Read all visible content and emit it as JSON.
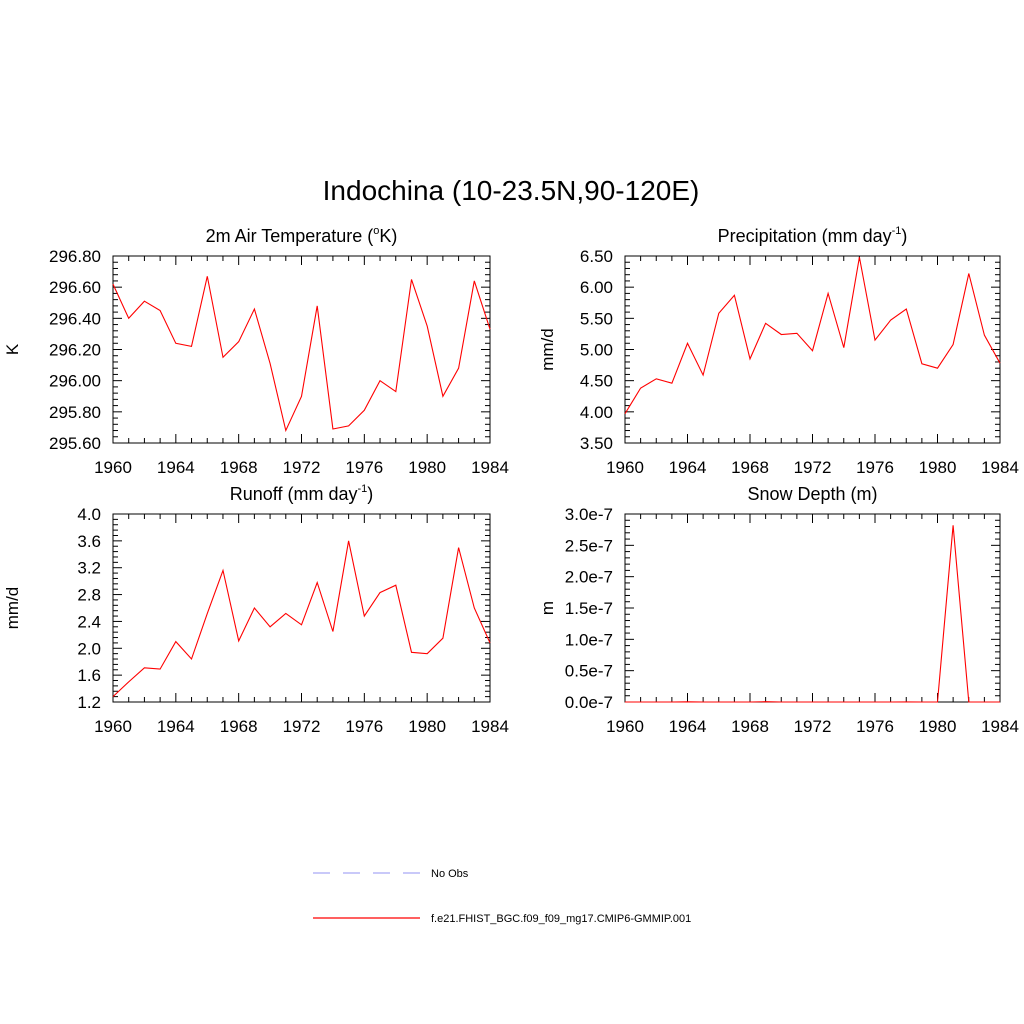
{
  "figure": {
    "title": "Indochina (10-23.5N,90-120E)"
  },
  "legend": {
    "entries": [
      {
        "label": "No Obs",
        "style": "dashed",
        "color": "#a9a9f5"
      },
      {
        "label": "f.e21.FHIST_BGC.f09_f09_mg17.CMIP6-GMMIP.001",
        "style": "solid",
        "color": "#ff0000"
      }
    ]
  },
  "chart_data": [
    {
      "type": "line",
      "title_main": "2m Air Temperature (",
      "title_sup": "o",
      "title_tail": "K)",
      "ylabel": "K",
      "xlim": [
        1960,
        1984
      ],
      "ylim": [
        295.6,
        296.8
      ],
      "xticks": [
        "1960",
        "1964",
        "1968",
        "1972",
        "1976",
        "1980",
        "1984"
      ],
      "yticks": [
        "295.60",
        "295.80",
        "296.00",
        "296.20",
        "296.40",
        "296.60",
        "296.80"
      ],
      "grid": false,
      "x": [
        1960,
        1961,
        1962,
        1963,
        1964,
        1965,
        1966,
        1967,
        1968,
        1969,
        1970,
        1971,
        1972,
        1973,
        1974,
        1975,
        1976,
        1977,
        1978,
        1979,
        1980,
        1981,
        1982,
        1983,
        1984
      ],
      "series": [
        {
          "color": "#ff0000",
          "values": [
            296.62,
            296.4,
            296.51,
            296.45,
            296.24,
            296.22,
            296.67,
            296.15,
            296.25,
            296.46,
            296.11,
            295.68,
            295.9,
            296.48,
            295.69,
            295.71,
            295.81,
            296.0,
            295.93,
            296.65,
            296.35,
            295.9,
            296.08,
            296.64,
            296.33
          ]
        }
      ]
    },
    {
      "type": "line",
      "title_main": "Precipitation (mm day",
      "title_sup": "-1",
      "title_tail": ")",
      "ylabel": "mm/d",
      "xlim": [
        1960,
        1984
      ],
      "ylim": [
        3.5,
        6.5
      ],
      "xticks": [
        "1960",
        "1964",
        "1968",
        "1972",
        "1976",
        "1980",
        "1984"
      ],
      "yticks": [
        "3.50",
        "4.00",
        "4.50",
        "5.00",
        "5.50",
        "6.00",
        "6.50"
      ],
      "grid": false,
      "x": [
        1960,
        1961,
        1962,
        1963,
        1964,
        1965,
        1966,
        1967,
        1968,
        1969,
        1970,
        1971,
        1972,
        1973,
        1974,
        1975,
        1976,
        1977,
        1978,
        1979,
        1980,
        1981,
        1982,
        1983,
        1984
      ],
      "series": [
        {
          "color": "#ff0000",
          "values": [
            3.97,
            4.38,
            4.53,
            4.46,
            5.1,
            4.59,
            5.58,
            5.87,
            4.85,
            5.42,
            5.24,
            5.26,
            4.98,
            5.9,
            5.03,
            6.48,
            5.15,
            5.47,
            5.65,
            4.77,
            4.7,
            5.08,
            6.22,
            5.23,
            4.78
          ]
        }
      ]
    },
    {
      "type": "line",
      "title_main": "Runoff (mm day",
      "title_sup": "-1",
      "title_tail": ")",
      "ylabel": "mm/d",
      "xlim": [
        1960,
        1984
      ],
      "ylim": [
        1.2,
        4.0
      ],
      "xticks": [
        "1960",
        "1964",
        "1968",
        "1972",
        "1976",
        "1980",
        "1984"
      ],
      "yticks": [
        "1.2",
        "1.6",
        "2.0",
        "2.4",
        "2.8",
        "3.2",
        "3.6",
        "4.0"
      ],
      "grid": false,
      "x": [
        1960,
        1961,
        1962,
        1963,
        1964,
        1965,
        1966,
        1967,
        1968,
        1969,
        1970,
        1971,
        1972,
        1973,
        1974,
        1975,
        1976,
        1977,
        1978,
        1979,
        1980,
        1981,
        1982,
        1983,
        1984
      ],
      "series": [
        {
          "color": "#ff0000",
          "values": [
            1.28,
            1.5,
            1.71,
            1.69,
            2.1,
            1.84,
            2.52,
            3.16,
            2.11,
            2.6,
            2.32,
            2.52,
            2.35,
            2.98,
            2.25,
            3.6,
            2.48,
            2.83,
            2.94,
            1.94,
            1.92,
            2.15,
            3.5,
            2.6,
            2.08
          ]
        }
      ]
    },
    {
      "type": "line",
      "title_main": "Snow Depth (m)",
      "title_sup": "",
      "title_tail": "",
      "ylabel": "m",
      "xlim": [
        1960,
        1984
      ],
      "ylim": [
        0,
        3e-07
      ],
      "xticks": [
        "1960",
        "1964",
        "1968",
        "1972",
        "1976",
        "1980",
        "1984"
      ],
      "yticks": [
        "0.0e-7",
        "0.5e-7",
        "1.0e-7",
        "1.5e-7",
        "2.0e-7",
        "2.5e-7",
        "3.0e-7"
      ],
      "grid": false,
      "x": [
        1960,
        1961,
        1962,
        1963,
        1964,
        1965,
        1966,
        1967,
        1968,
        1969,
        1970,
        1971,
        1972,
        1973,
        1974,
        1975,
        1976,
        1977,
        1978,
        1979,
        1980,
        1981,
        1982,
        1983,
        1984
      ],
      "series": [
        {
          "color": "#ff0000",
          "values": [
            0,
            0,
            0,
            0,
            3e-10,
            0,
            0,
            0,
            0,
            4e-10,
            0,
            0,
            0,
            0,
            0,
            0,
            0,
            0,
            2e-10,
            0,
            0,
            2.82e-07,
            0,
            0,
            0
          ]
        }
      ]
    }
  ]
}
